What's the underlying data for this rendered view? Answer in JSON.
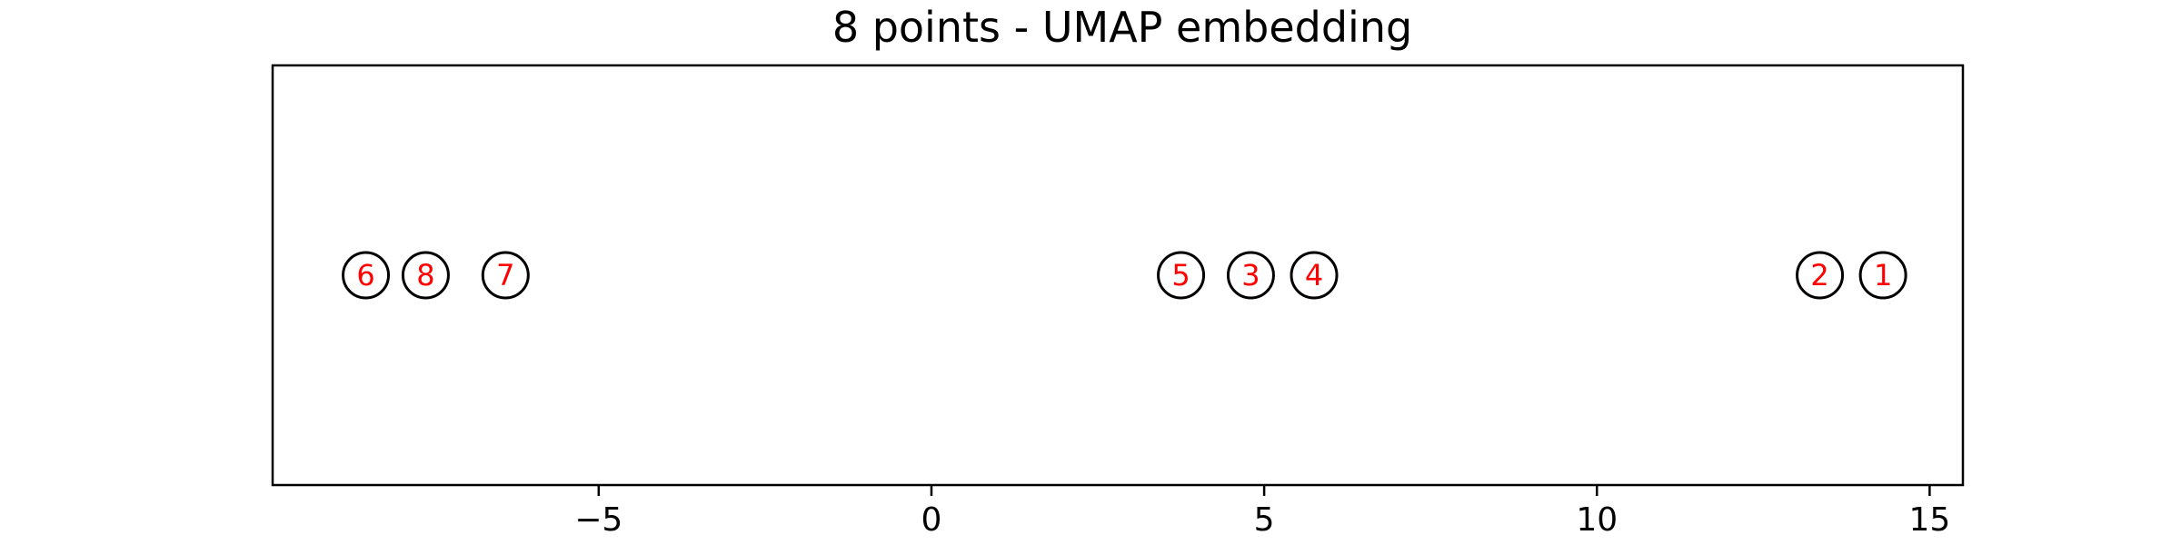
{
  "chart_data": {
    "type": "scatter",
    "title": "8 points - UMAP embedding",
    "xlabel": "",
    "ylabel": "",
    "xlim": [
      -9.9,
      15.5
    ],
    "ylim": [
      -1,
      1
    ],
    "xticks": [
      -5,
      0,
      5,
      10,
      15
    ],
    "xtick_labels": [
      "−5",
      "0",
      "5",
      "10",
      "15"
    ],
    "yticks": [],
    "grid": false,
    "legend": "none",
    "colors": {
      "marker_edge": "#000000",
      "label": "#ff0000"
    },
    "points": [
      {
        "label": "1",
        "x": 14.3,
        "y": 0
      },
      {
        "label": "2",
        "x": 13.35,
        "y": 0
      },
      {
        "label": "3",
        "x": 4.8,
        "y": 0
      },
      {
        "label": "4",
        "x": 5.75,
        "y": 0
      },
      {
        "label": "5",
        "x": 3.75,
        "y": 0
      },
      {
        "label": "6",
        "x": -8.5,
        "y": 0
      },
      {
        "label": "7",
        "x": -6.4,
        "y": 0
      },
      {
        "label": "8",
        "x": -7.6,
        "y": 0
      }
    ]
  }
}
